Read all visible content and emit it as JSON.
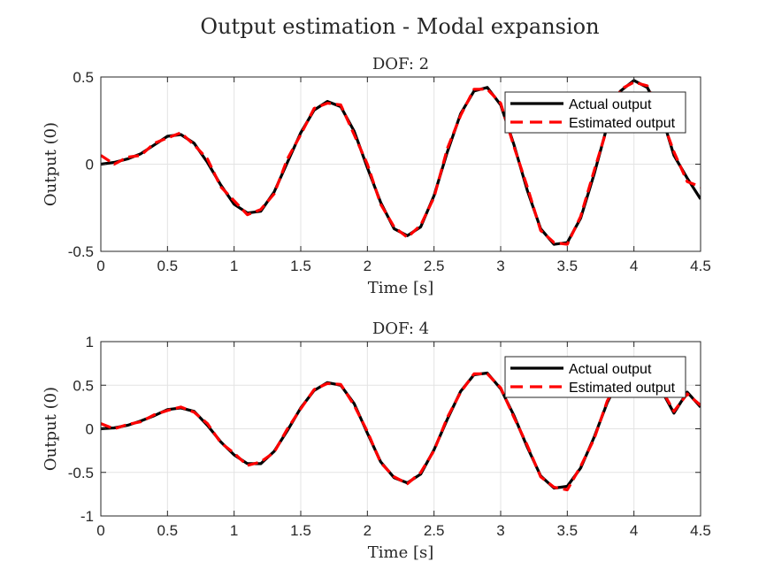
{
  "figure": {
    "title": "Output estimation - Modal expansion"
  },
  "colors": {
    "actual": "#000000",
    "estimated": "#ff0000",
    "grid": "#e3e3e3",
    "axes": "#262626",
    "background": "#ffffff"
  },
  "chart_data": [
    {
      "type": "line",
      "title": "DOF: 2",
      "xlabel": "Time [s]",
      "ylabel": "Output (0)",
      "xlim": [
        0,
        4.5
      ],
      "ylim": [
        -0.5,
        0.5
      ],
      "x_ticks": [
        "0",
        "0.5",
        "1",
        "1.5",
        "2",
        "2.5",
        "3",
        "3.5",
        "4",
        "4.5"
      ],
      "y_ticks": [
        "-0.5",
        "0",
        "0.5"
      ],
      "grid": true,
      "legend_position": "top-right",
      "x": [
        0,
        0.1,
        0.2,
        0.3,
        0.4,
        0.5,
        0.6,
        0.7,
        0.8,
        0.9,
        1.0,
        1.1,
        1.2,
        1.3,
        1.4,
        1.5,
        1.6,
        1.7,
        1.8,
        1.9,
        2.0,
        2.1,
        2.2,
        2.3,
        2.4,
        2.5,
        2.6,
        2.7,
        2.8,
        2.9,
        3.0,
        3.1,
        3.2,
        3.3,
        3.4,
        3.5,
        3.6,
        3.7,
        3.8,
        3.9,
        4.0,
        4.1,
        4.2,
        4.3,
        4.4,
        4.5
      ],
      "series": [
        {
          "name": "Actual output",
          "values": [
            0.0,
            0.01,
            0.03,
            0.06,
            0.11,
            0.16,
            0.17,
            0.12,
            0.01,
            -0.12,
            -0.23,
            -0.28,
            -0.27,
            -0.16,
            0.01,
            0.18,
            0.31,
            0.36,
            0.33,
            0.19,
            -0.02,
            -0.22,
            -0.37,
            -0.41,
            -0.36,
            -0.18,
            0.07,
            0.29,
            0.42,
            0.44,
            0.34,
            0.11,
            -0.15,
            -0.37,
            -0.46,
            -0.45,
            -0.31,
            -0.06,
            0.22,
            0.42,
            0.48,
            0.44,
            0.3,
            0.05,
            -0.08,
            -0.2
          ]
        },
        {
          "name": "Estimated output",
          "values": [
            0.05,
            0.0,
            0.04,
            0.05,
            0.12,
            0.15,
            0.18,
            0.11,
            0.03,
            -0.13,
            -0.21,
            -0.29,
            -0.26,
            -0.17,
            0.03,
            0.17,
            0.32,
            0.35,
            0.34,
            0.17,
            0.0,
            -0.23,
            -0.36,
            -0.42,
            -0.35,
            -0.19,
            0.09,
            0.28,
            0.43,
            0.43,
            0.35,
            0.1,
            -0.13,
            -0.38,
            -0.45,
            -0.46,
            -0.3,
            -0.04,
            0.21,
            0.43,
            0.47,
            0.45,
            0.28,
            0.07,
            -0.1,
            -0.13
          ]
        }
      ]
    },
    {
      "type": "line",
      "title": "DOF: 4",
      "xlabel": "Time [s]",
      "ylabel": "Output (0)",
      "xlim": [
        0,
        4.5
      ],
      "ylim": [
        -1,
        1
      ],
      "x_ticks": [
        "0",
        "0.5",
        "1",
        "1.5",
        "2",
        "2.5",
        "3",
        "3.5",
        "4",
        "4.5"
      ],
      "y_ticks": [
        "-1",
        "-0.5",
        "0",
        "0.5",
        "1"
      ],
      "grid": true,
      "legend_position": "top-right",
      "x": [
        0,
        0.1,
        0.2,
        0.3,
        0.4,
        0.5,
        0.6,
        0.7,
        0.8,
        0.9,
        1.0,
        1.1,
        1.2,
        1.3,
        1.4,
        1.5,
        1.6,
        1.7,
        1.8,
        1.9,
        2.0,
        2.1,
        2.2,
        2.3,
        2.4,
        2.5,
        2.6,
        2.7,
        2.8,
        2.9,
        3.0,
        3.1,
        3.2,
        3.3,
        3.4,
        3.5,
        3.6,
        3.7,
        3.8,
        3.9,
        4.0,
        4.1,
        4.2,
        4.3,
        4.4,
        4.5
      ],
      "series": [
        {
          "name": "Actual output",
          "values": [
            0.0,
            0.01,
            0.04,
            0.09,
            0.15,
            0.22,
            0.24,
            0.2,
            0.04,
            -0.15,
            -0.3,
            -0.4,
            -0.4,
            -0.26,
            -0.02,
            0.24,
            0.44,
            0.53,
            0.5,
            0.29,
            -0.05,
            -0.38,
            -0.56,
            -0.62,
            -0.52,
            -0.24,
            0.11,
            0.43,
            0.62,
            0.64,
            0.46,
            0.15,
            -0.21,
            -0.54,
            -0.68,
            -0.66,
            -0.45,
            -0.1,
            0.3,
            0.6,
            0.72,
            0.64,
            0.46,
            0.18,
            0.42,
            0.25
          ]
        },
        {
          "name": "Estimated output",
          "values": [
            0.06,
            0.0,
            0.05,
            0.08,
            0.16,
            0.21,
            0.25,
            0.19,
            0.06,
            -0.16,
            -0.28,
            -0.42,
            -0.38,
            -0.27,
            0.0,
            0.23,
            0.45,
            0.52,
            0.51,
            0.27,
            -0.03,
            -0.39,
            -0.55,
            -0.63,
            -0.5,
            -0.25,
            0.13,
            0.42,
            0.63,
            0.63,
            0.47,
            0.13,
            -0.19,
            -0.55,
            -0.67,
            -0.7,
            -0.43,
            -0.12,
            0.32,
            0.59,
            0.73,
            0.63,
            0.47,
            0.2,
            0.4,
            0.27
          ]
        }
      ]
    }
  ]
}
